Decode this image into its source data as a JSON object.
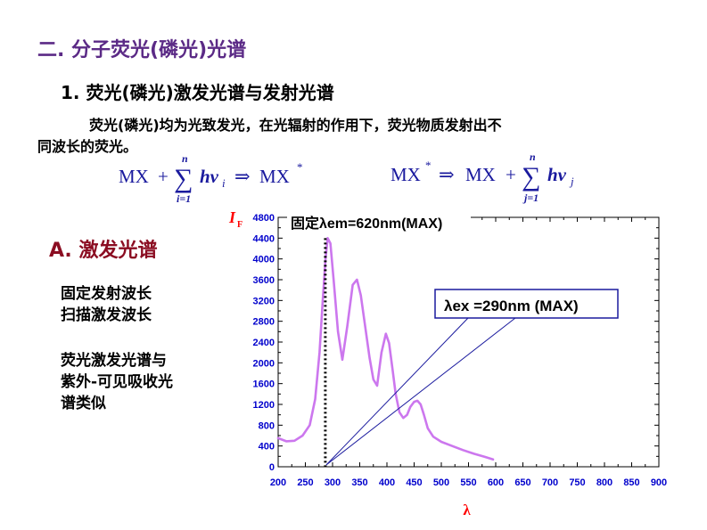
{
  "section_title": "二. 分子荧光(磷光)光谱",
  "subsection_title": "1. 荧光(磷光)激发光谱与发射光谱",
  "intro": {
    "line1": "荧光(磷光)均为光致发光，在光辐射的作用下，荧光物质发射出不",
    "line2": "同波长的荧光。"
  },
  "formulas": {
    "excitation": {
      "lhs": "MX",
      "plus": "+",
      "sum_upper": "n",
      "sum_lower": "i=1",
      "term": "hv",
      "subscript": "i",
      "arrow": "⇒",
      "rhs": "MX",
      "star": "*"
    },
    "emission": {
      "lhs": "MX",
      "star": "*",
      "arrow": "⇒",
      "rhs": "MX",
      "plus": "+",
      "sum_upper": "n",
      "sum_lower": "j=1",
      "term": "hv",
      "subscript": "j"
    }
  },
  "side_panel": {
    "heading": "A. 激发光谱",
    "note1": [
      "固定发射波长",
      "扫描激发波长"
    ],
    "note2": [
      "荧光激发光谱与",
      "紫外-可见吸收光",
      "谱类似"
    ]
  },
  "chart_data": {
    "type": "line",
    "ylabel_main": "I",
    "ylabel_sub": "F",
    "xlabel": "λ",
    "xlim": [
      200,
      900
    ],
    "ylim": [
      0,
      4800
    ],
    "x_ticks": [
      200,
      250,
      300,
      350,
      400,
      450,
      500,
      550,
      600,
      650,
      700,
      750,
      800,
      850,
      900
    ],
    "y_ticks": [
      0,
      400,
      800,
      1200,
      1600,
      2000,
      2400,
      2800,
      3200,
      3600,
      4000,
      4400,
      4800
    ],
    "series": [
      {
        "color": "#cc77ee",
        "x": [
          200,
          215,
          230,
          245,
          258,
          268,
          276,
          282,
          287,
          291,
          296,
          302,
          310,
          318,
          327,
          337,
          345,
          352,
          360,
          368,
          375,
          382,
          390,
          398,
          404,
          410,
          416,
          423,
          430,
          437,
          443,
          450,
          456,
          462,
          468,
          475,
          485,
          500,
          520,
          540,
          560,
          580,
          595
        ],
        "y": [
          550,
          490,
          500,
          600,
          800,
          1300,
          2200,
          3200,
          4000,
          4400,
          4300,
          3600,
          2600,
          2060,
          2700,
          3500,
          3600,
          3300,
          2700,
          2100,
          1680,
          1560,
          2200,
          2560,
          2380,
          1900,
          1400,
          1050,
          940,
          1000,
          1150,
          1250,
          1270,
          1200,
          1000,
          740,
          580,
          480,
          400,
          320,
          250,
          190,
          140
        ]
      }
    ],
    "annotations": {
      "em_label": "固定λem=620nm(MAX)",
      "ex_label": "λex =290nm (MAX)",
      "em_wavelength_nm": 620,
      "ex_wavelength_nm": 290
    },
    "colors": {
      "series": "#cc77ee",
      "axis_text": "#0000cc",
      "axis_label": "#ff0000",
      "pointer_lines": "#1a1a9e",
      "callout_border": "#1a1a9e"
    }
  }
}
